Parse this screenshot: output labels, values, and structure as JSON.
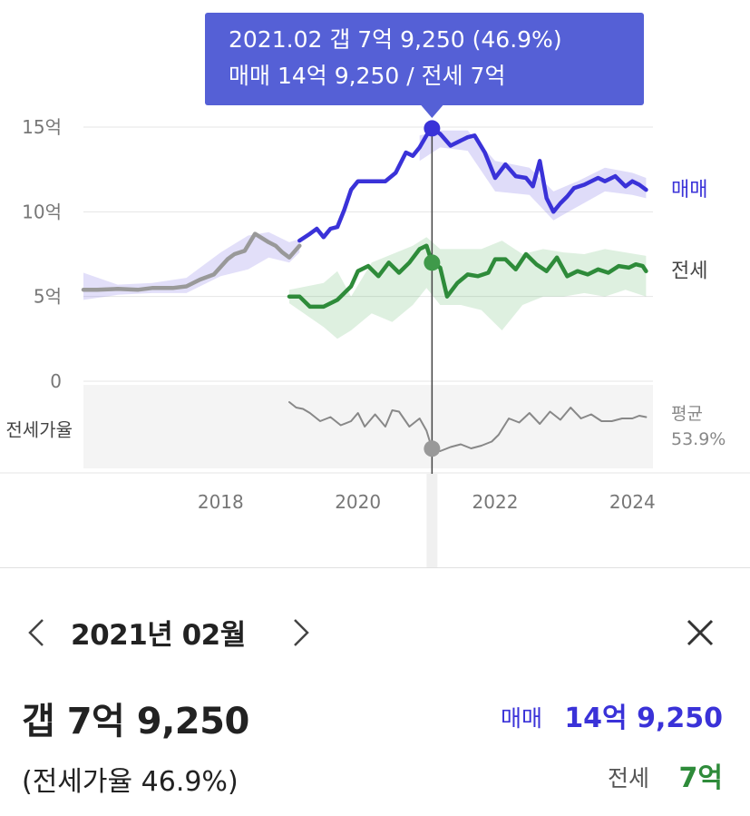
{
  "tooltip": {
    "line1": "2021.02  갭 7억 9,250 (46.9%)",
    "line2": "매매 14억 9,250 / 전세 7억"
  },
  "colors": {
    "sale": "#3a32d8",
    "jeonse": "#2e8b3a",
    "past": "#999999",
    "ratio": "#888888",
    "tooltip_bg": "#5560d6"
  },
  "chart_data": {
    "type": "line",
    "x_unit": "year",
    "ylabel": "",
    "y_ticks": [
      {
        "value": 15,
        "label": "15억"
      },
      {
        "value": 10,
        "label": "10억"
      },
      {
        "value": 5,
        "label": "5억"
      },
      {
        "value": 0,
        "label": "0"
      }
    ],
    "ylim": [
      0,
      16
    ],
    "x_ticks": [
      "2018",
      "2020",
      "2022",
      "2024"
    ],
    "xlim": [
      2016.0,
      2024.3
    ],
    "cursor_x": 2021.08,
    "series": [
      {
        "name": "",
        "key": "past",
        "x": [
          2016.0,
          2016.2,
          2016.5,
          2016.8,
          2017.0,
          2017.3,
          2017.5,
          2017.7,
          2017.9,
          2018.1,
          2018.2,
          2018.35,
          2018.5,
          2018.7,
          2018.8,
          2018.9,
          2019.0,
          2019.15
        ],
        "y": [
          5.4,
          5.4,
          5.45,
          5.4,
          5.5,
          5.5,
          5.6,
          6.0,
          6.3,
          7.2,
          7.5,
          7.7,
          8.7,
          8.2,
          8.0,
          7.6,
          7.3,
          8.0
        ]
      },
      {
        "name": "매매",
        "key": "sale",
        "x": [
          2019.15,
          2019.3,
          2019.4,
          2019.5,
          2019.6,
          2019.7,
          2019.8,
          2019.9,
          2020.0,
          2020.2,
          2020.4,
          2020.55,
          2020.7,
          2020.8,
          2020.9,
          2021.0,
          2021.08,
          2021.2,
          2021.35,
          2021.5,
          2021.6,
          2021.7,
          2021.85,
          2022.0,
          2022.15,
          2022.3,
          2022.45,
          2022.55,
          2022.65,
          2022.75,
          2022.85,
          2022.95,
          2023.05,
          2023.15,
          2023.3,
          2023.5,
          2023.6,
          2023.75,
          2023.9,
          2024.0,
          2024.1,
          2024.2
        ],
        "y": [
          8.3,
          8.7,
          9.0,
          8.5,
          9.0,
          9.1,
          10.1,
          11.3,
          11.8,
          11.8,
          11.8,
          12.3,
          13.5,
          13.3,
          13.8,
          14.5,
          14.925,
          14.6,
          13.9,
          14.2,
          14.4,
          14.5,
          13.5,
          12.0,
          12.8,
          12.1,
          12.0,
          11.5,
          13.0,
          10.8,
          10.0,
          10.5,
          10.9,
          11.4,
          11.6,
          12.0,
          11.8,
          12.1,
          11.5,
          11.8,
          11.6,
          11.3
        ]
      },
      {
        "name": "전세",
        "key": "jeonse",
        "x": [
          2019.0,
          2019.15,
          2019.3,
          2019.5,
          2019.7,
          2019.9,
          2020.0,
          2020.15,
          2020.3,
          2020.45,
          2020.6,
          2020.75,
          2020.9,
          2021.0,
          2021.08,
          2021.2,
          2021.3,
          2021.45,
          2021.6,
          2021.75,
          2021.9,
          2022.0,
          2022.15,
          2022.3,
          2022.45,
          2022.6,
          2022.75,
          2022.9,
          2023.05,
          2023.2,
          2023.35,
          2023.5,
          2023.65,
          2023.8,
          2023.95,
          2024.05,
          2024.15,
          2024.2
        ],
        "y": [
          5.0,
          5.0,
          4.4,
          4.4,
          4.8,
          5.6,
          6.5,
          6.8,
          6.2,
          7.0,
          6.4,
          7.0,
          7.8,
          8.0,
          7.0,
          6.7,
          5.0,
          5.8,
          6.3,
          6.2,
          6.4,
          7.2,
          7.2,
          6.6,
          7.5,
          6.9,
          6.5,
          7.3,
          6.2,
          6.5,
          6.3,
          6.6,
          6.4,
          6.8,
          6.7,
          6.9,
          6.8,
          6.5
        ]
      },
      {
        "name": "전세가율",
        "key": "ratio",
        "x": [
          2019.0,
          2019.1,
          2019.2,
          2019.3,
          2019.45,
          2019.6,
          2019.75,
          2019.9,
          2020.0,
          2020.1,
          2020.25,
          2020.4,
          2020.5,
          2020.6,
          2020.75,
          2020.9,
          2021.0,
          2021.08,
          2021.2,
          2021.35,
          2021.5,
          2021.65,
          2021.8,
          2021.95,
          2022.05,
          2022.2,
          2022.35,
          2022.5,
          2022.65,
          2022.8,
          2022.95,
          2023.1,
          2023.25,
          2023.4,
          2023.55,
          2023.7,
          2023.85,
          2024.0,
          2024.1,
          2024.2
        ],
        "y": [
          64.0,
          62.0,
          61.5,
          60.0,
          57.0,
          58.5,
          55.5,
          57.0,
          60.0,
          55.0,
          59.5,
          55.0,
          61.0,
          60.5,
          55.0,
          58.0,
          53.5,
          46.9,
          46.0,
          47.5,
          48.5,
          47.0,
          48.0,
          49.5,
          52.0,
          58.0,
          56.5,
          60.0,
          56.0,
          60.5,
          57.5,
          62.0,
          58.0,
          59.5,
          57.0,
          57.0,
          58.0,
          58.0,
          59.0,
          58.5
        ]
      }
    ],
    "band_sale": {
      "x": [
        2020.9,
        2021.2,
        2021.6,
        2022.0,
        2022.5,
        2022.85,
        2023.2,
        2023.6,
        2024.0,
        2024.2
      ],
      "upper": [
        14.5,
        14.8,
        14.8,
        13.0,
        12.6,
        11.2,
        11.8,
        12.6,
        12.3,
        12.0
      ],
      "lower": [
        13.0,
        13.8,
        13.6,
        11.2,
        11.0,
        9.5,
        10.3,
        11.2,
        11.0,
        10.8
      ]
    },
    "band_jeonse": {
      "x": [
        2019.0,
        2019.5,
        2019.7,
        2019.9,
        2020.2,
        2020.5,
        2020.8,
        2021.0,
        2021.2,
        2021.5,
        2021.8,
        2022.1,
        2022.4,
        2022.7,
        2023.0,
        2023.3,
        2023.6,
        2023.9,
        2024.2
      ],
      "upper": [
        5.4,
        5.8,
        6.5,
        5.0,
        7.0,
        7.5,
        8.0,
        8.5,
        7.8,
        7.8,
        7.8,
        8.3,
        7.5,
        7.8,
        7.6,
        7.5,
        7.8,
        7.6,
        7.4
      ],
      "lower": [
        4.6,
        3.2,
        2.5,
        3.0,
        4.0,
        3.5,
        4.5,
        5.5,
        4.5,
        4.5,
        4.2,
        3.0,
        4.5,
        5.0,
        5.0,
        5.2,
        5.0,
        5.4,
        5.0
      ]
    },
    "band_past": {
      "x": [
        2016.0,
        2016.5,
        2017.0,
        2017.5,
        2018.0,
        2018.4,
        2018.7,
        2019.0,
        2019.15
      ],
      "upper": [
        6.4,
        5.7,
        5.8,
        6.1,
        7.6,
        8.6,
        8.8,
        8.2,
        8.4
      ],
      "lower": [
        4.8,
        5.1,
        5.2,
        5.2,
        6.2,
        6.6,
        7.3,
        7.0,
        7.6
      ]
    },
    "ratio_panel": {
      "label": "전세가율",
      "avg_label": "평균",
      "avg_value": "53.9%",
      "avg": 53.9
    }
  },
  "detail": {
    "date": "2021년 02월",
    "gap": "갭 7억 9,250",
    "ratio": "(전세가율 46.9%)",
    "sale_label": "매매",
    "sale_value": "14억 9,250",
    "jeonse_label": "전세",
    "jeonse_value": "7억"
  }
}
